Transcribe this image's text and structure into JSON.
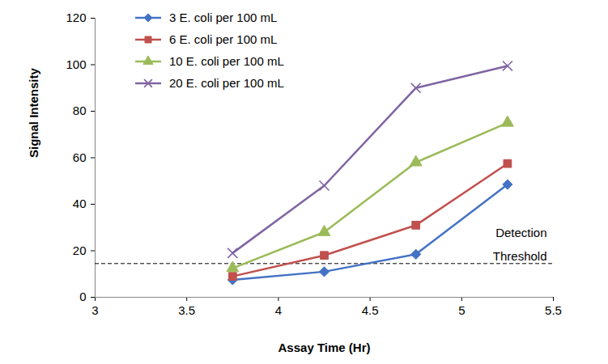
{
  "chart_data": {
    "type": "line",
    "x_label": "Assay Time (Hr)",
    "y_label": "Signal Intensity",
    "x": [
      3.75,
      4.25,
      4.75,
      5.25
    ],
    "series": [
      {
        "name": "3 E. coli per 100 mL",
        "color": "#4472c4",
        "marker": "diamond",
        "values": [
          7.5,
          11,
          18.5,
          48.5
        ]
      },
      {
        "name": "6 E. coli per 100 mL",
        "color": "#c0504d",
        "marker": "square",
        "values": [
          9,
          18,
          31,
          57.5
        ]
      },
      {
        "name": "10 E. coli per 100 mL",
        "color": "#9bbb59",
        "marker": "triangle",
        "values": [
          12.5,
          28,
          58,
          75
        ]
      },
      {
        "name": "20 E. coli per 100 mL",
        "color": "#8064a2",
        "marker": "times",
        "values": [
          19,
          48,
          90,
          99.5
        ]
      }
    ],
    "xlim": [
      3,
      5.5
    ],
    "xticks": [
      3,
      3.5,
      4,
      4.5,
      5,
      5.5
    ],
    "ylim": [
      0,
      120
    ],
    "yticks": [
      0,
      20,
      40,
      60,
      80,
      100,
      120
    ],
    "grid": false,
    "legend": "top-left",
    "annotations": [
      {
        "text": "Detection\nThreshold",
        "y": 14.5,
        "line_style": "dashed"
      }
    ]
  }
}
